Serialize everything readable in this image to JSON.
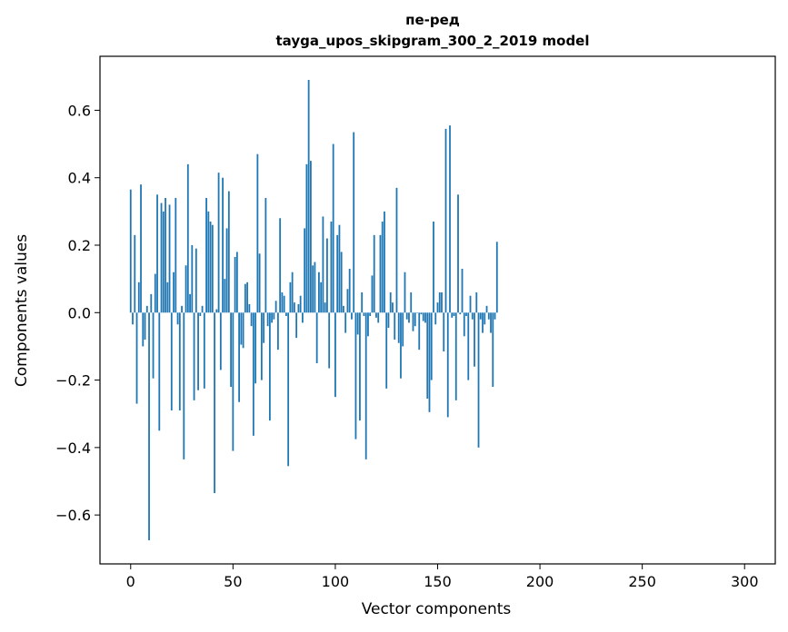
{
  "chart_data": {
    "type": "bar",
    "title": "пе-ред",
    "subtitle": "tayga_upos_skipgram_300_2_2019 model",
    "xlabel": "Vector components",
    "ylabel": "Components values",
    "xlim": [
      -15,
      315
    ],
    "ylim": [
      -0.745,
      0.76
    ],
    "xticks": [
      0,
      50,
      100,
      150,
      200,
      250,
      300
    ],
    "yticks": [
      -0.6,
      -0.4,
      -0.2,
      0.0,
      0.2,
      0.4,
      0.6
    ],
    "ytick_labels": [
      "−0.6",
      "−0.4",
      "−0.2",
      "0.0",
      "0.2",
      "0.4",
      "0.6"
    ],
    "bar_color": "#1f77b4",
    "grid": false,
    "values": [
      0.365,
      -0.035,
      0.23,
      -0.27,
      0.09,
      0.38,
      -0.1,
      -0.08,
      0.02,
      -0.675,
      0.055,
      -0.195,
      0.115,
      0.35,
      -0.35,
      0.325,
      0.3,
      0.34,
      0.09,
      0.32,
      -0.29,
      0.12,
      0.34,
      -0.035,
      -0.29,
      0.02,
      -0.435,
      0.14,
      0.44,
      0.055,
      0.2,
      -0.26,
      0.19,
      -0.23,
      -0.01,
      0.02,
      -0.225,
      0.34,
      0.3,
      0.27,
      0.26,
      -0.535,
      0.01,
      0.415,
      -0.17,
      0.4,
      0.1,
      0.25,
      0.36,
      -0.22,
      -0.41,
      0.165,
      0.18,
      -0.265,
      -0.095,
      -0.105,
      0.085,
      0.09,
      0.025,
      -0.04,
      -0.365,
      -0.21,
      0.47,
      0.175,
      -0.2,
      -0.09,
      0.34,
      -0.04,
      -0.32,
      -0.03,
      -0.02,
      0.035,
      -0.11,
      0.28,
      0.06,
      0.05,
      -0.01,
      -0.455,
      0.09,
      0.12,
      0.03,
      -0.075,
      0.025,
      0.05,
      -0.03,
      0.25,
      0.44,
      0.69,
      0.45,
      0.14,
      0.15,
      -0.15,
      0.12,
      0.09,
      0.285,
      0.03,
      0.22,
      -0.165,
      0.27,
      0.5,
      -0.25,
      0.23,
      0.26,
      0.18,
      0.02,
      -0.06,
      0.07,
      0.13,
      -0.02,
      0.535,
      -0.375,
      -0.065,
      -0.32,
      0.06,
      -0.01,
      -0.435,
      -0.07,
      -0.01,
      0.11,
      0.23,
      -0.015,
      -0.03,
      0.23,
      0.27,
      0.3,
      -0.225,
      -0.045,
      0.06,
      0.03,
      -0.08,
      0.37,
      -0.09,
      -0.195,
      -0.1,
      0.12,
      -0.02,
      -0.03,
      0.06,
      -0.055,
      -0.04,
      0.0,
      -0.11,
      -0.005,
      -0.025,
      -0.03,
      -0.255,
      -0.295,
      -0.2,
      0.27,
      -0.035,
      0.03,
      0.06,
      0.06,
      -0.115,
      0.545,
      -0.31,
      0.555,
      -0.015,
      -0.01,
      -0.26,
      0.35,
      -0.005,
      0.13,
      -0.07,
      -0.01,
      -0.2,
      0.05,
      -0.02,
      -0.16,
      0.06,
      -0.4,
      -0.02,
      -0.06,
      -0.035,
      0.02,
      -0.02,
      -0.06,
      -0.22,
      -0.02,
      0.21
    ]
  }
}
